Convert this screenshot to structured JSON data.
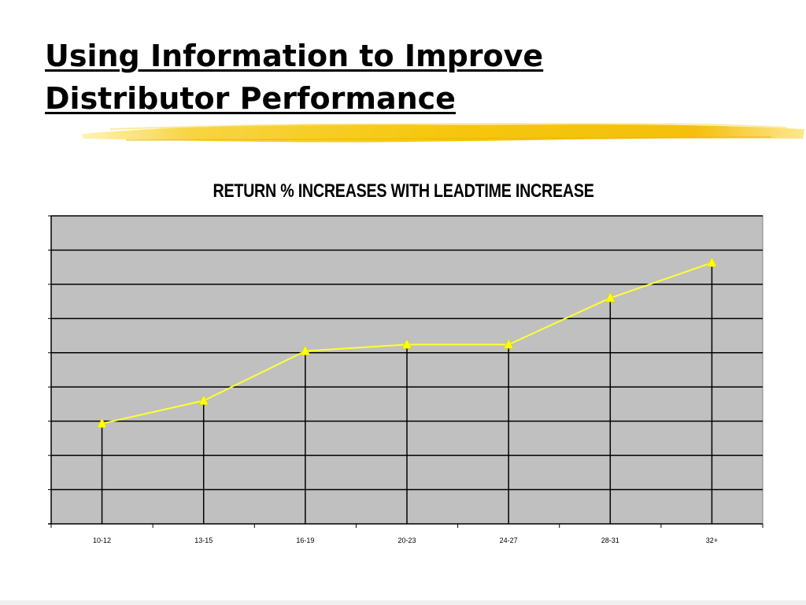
{
  "slide": {
    "title_line1": "Using Information to Improve",
    "title_line2": "Distributor Performance"
  },
  "colors": {
    "plot_background": "#c0c0c0",
    "series_line": "#ffff33",
    "marker": "#ffff00",
    "highlighter": "#f5c400"
  },
  "chart_data": {
    "type": "line",
    "title": "RETURN % INCREASES WITH LEADTIME INCREASE",
    "categories": [
      "10-12",
      "13-15",
      "16-19",
      "20-23",
      "24-27",
      "28-31",
      "32+"
    ],
    "values": [
      2.93,
      3.6,
      5.05,
      5.24,
      5.24,
      6.6,
      7.63
    ],
    "ylim": [
      0,
      9
    ],
    "grid": true,
    "y_tick_labels_shown": false,
    "marker": "triangle",
    "drop_lines": true,
    "legend": "none"
  }
}
